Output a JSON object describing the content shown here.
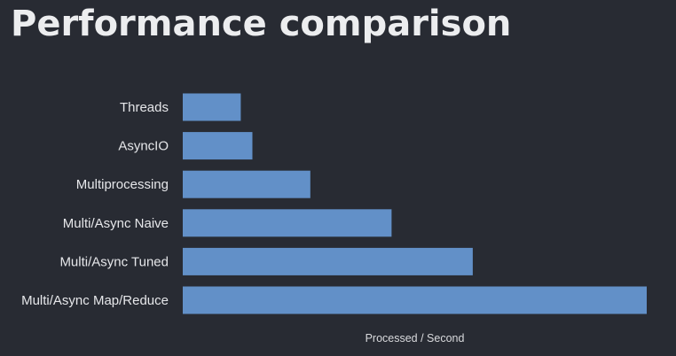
{
  "slide": {
    "title": "Performance comparison"
  },
  "colors": {
    "background": "#282b33",
    "bar": "#6290c8",
    "text": "#e6e7ea"
  },
  "chart_data": {
    "type": "bar",
    "orientation": "horizontal",
    "title": "Performance comparison",
    "categories": [
      "Threads",
      "AsyncIO",
      "Multiprocessing",
      "Multi/Async Naive",
      "Multi/Async Tuned",
      "Multi/Async Map/Reduce"
    ],
    "values": [
      12.5,
      15,
      27.5,
      45,
      62.5,
      100
    ],
    "xlabel": "Processed / Second",
    "ylabel": "",
    "xlim": [
      0,
      100
    ],
    "grid": false,
    "legend": "none"
  }
}
